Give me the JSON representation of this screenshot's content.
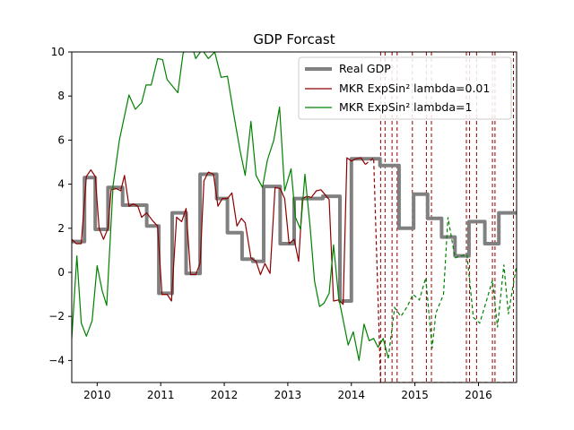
{
  "chart_data": {
    "type": "line",
    "title": "GDP Forcast",
    "xlim": [
      2009.6,
      2016.6
    ],
    "ylim": [
      -5,
      10
    ],
    "x_ticks": [
      2010,
      2011,
      2012,
      2013,
      2014,
      2015,
      2016
    ],
    "y_ticks": [
      -4,
      -2,
      0,
      2,
      4,
      6,
      8,
      10
    ],
    "grid": false,
    "legend_position": "top-right",
    "forecast_start_x": 2014.5,
    "vertical_markers": [
      2014.46,
      2014.53,
      2014.64,
      2014.72,
      2014.96,
      2015.18,
      2015.26,
      2015.81,
      2015.86,
      2015.97,
      2016.22,
      2016.26,
      2016.55,
      2016.6
    ],
    "colors": {
      "real": "#808080",
      "low": "#8b0000",
      "high": "#008000",
      "markers": "#8b0000"
    },
    "series": [
      {
        "name": "Real GDP",
        "color": "#808080",
        "points": [
          [
            2009.6,
            1.4
          ],
          [
            2009.8,
            1.4
          ],
          [
            2009.8,
            4.3
          ],
          [
            2009.97,
            4.3
          ],
          [
            2009.97,
            1.95
          ],
          [
            2010.17,
            1.95
          ],
          [
            2010.17,
            3.85
          ],
          [
            2010.4,
            3.85
          ],
          [
            2010.4,
            3.05
          ],
          [
            2010.78,
            3.05
          ],
          [
            2010.78,
            2.1
          ],
          [
            2010.97,
            2.1
          ],
          [
            2010.97,
            -0.95
          ],
          [
            2011.18,
            -0.95
          ],
          [
            2011.18,
            2.7
          ],
          [
            2011.4,
            2.7
          ],
          [
            2011.4,
            -0.05
          ],
          [
            2011.62,
            -0.05
          ],
          [
            2011.62,
            4.45
          ],
          [
            2011.88,
            4.45
          ],
          [
            2011.88,
            3.35
          ],
          [
            2012.05,
            3.35
          ],
          [
            2012.05,
            1.8
          ],
          [
            2012.28,
            1.8
          ],
          [
            2012.28,
            0.6
          ],
          [
            2012.45,
            0.6
          ],
          [
            2012.45,
            0.5
          ],
          [
            2012.62,
            0.5
          ],
          [
            2012.62,
            3.9
          ],
          [
            2012.88,
            3.9
          ],
          [
            2012.88,
            1.3
          ],
          [
            2013.1,
            1.3
          ],
          [
            2013.1,
            3.35
          ],
          [
            2013.55,
            3.35
          ],
          [
            2013.55,
            3.45
          ],
          [
            2013.82,
            3.45
          ],
          [
            2013.82,
            -1.3
          ],
          [
            2014.0,
            -1.3
          ],
          [
            2014.0,
            5.15
          ],
          [
            2014.45,
            5.15
          ],
          [
            2014.45,
            4.85
          ],
          [
            2014.75,
            4.85
          ],
          [
            2014.75,
            2.0
          ],
          [
            2014.98,
            2.0
          ],
          [
            2014.98,
            3.55
          ],
          [
            2015.2,
            3.55
          ],
          [
            2015.2,
            2.45
          ],
          [
            2015.42,
            2.45
          ],
          [
            2015.42,
            1.6
          ],
          [
            2015.63,
            1.6
          ],
          [
            2015.63,
            0.75
          ],
          [
            2015.85,
            0.75
          ],
          [
            2015.85,
            2.3
          ],
          [
            2016.1,
            2.3
          ],
          [
            2016.1,
            1.3
          ],
          [
            2016.32,
            1.3
          ],
          [
            2016.32,
            2.7
          ],
          [
            2016.6,
            2.7
          ]
        ]
      },
      {
        "name": "MKR ExpSin² lambda=0.01",
        "color": "#8b0000",
        "points": [
          [
            2009.6,
            1.5
          ],
          [
            2009.67,
            1.3
          ],
          [
            2009.75,
            1.3
          ],
          [
            2009.83,
            4.35
          ],
          [
            2009.9,
            4.65
          ],
          [
            2009.97,
            4.35
          ],
          [
            2010.03,
            2.0
          ],
          [
            2010.1,
            1.5
          ],
          [
            2010.17,
            2.0
          ],
          [
            2010.22,
            3.75
          ],
          [
            2010.3,
            3.8
          ],
          [
            2010.37,
            3.7
          ],
          [
            2010.43,
            4.4
          ],
          [
            2010.5,
            3.0
          ],
          [
            2010.57,
            3.1
          ],
          [
            2010.64,
            3.0
          ],
          [
            2010.7,
            2.5
          ],
          [
            2010.78,
            2.7
          ],
          [
            2010.87,
            2.35
          ],
          [
            2010.95,
            2.1
          ],
          [
            2011.02,
            -1.0
          ],
          [
            2011.1,
            -1.0
          ],
          [
            2011.17,
            -1.3
          ],
          [
            2011.25,
            2.5
          ],
          [
            2011.33,
            2.3
          ],
          [
            2011.4,
            2.9
          ],
          [
            2011.47,
            -0.1
          ],
          [
            2011.55,
            -0.1
          ],
          [
            2011.62,
            0.4
          ],
          [
            2011.68,
            4.15
          ],
          [
            2011.75,
            4.55
          ],
          [
            2011.83,
            4.45
          ],
          [
            2011.9,
            3.0
          ],
          [
            2011.97,
            3.35
          ],
          [
            2012.05,
            3.35
          ],
          [
            2012.12,
            3.6
          ],
          [
            2012.2,
            2.1
          ],
          [
            2012.27,
            2.45
          ],
          [
            2012.33,
            2.25
          ],
          [
            2012.42,
            0.65
          ],
          [
            2012.5,
            0.5
          ],
          [
            2012.57,
            -0.1
          ],
          [
            2012.64,
            0.4
          ],
          [
            2012.72,
            -0.05
          ],
          [
            2012.8,
            3.85
          ],
          [
            2012.88,
            3.8
          ],
          [
            2012.95,
            3.35
          ],
          [
            2013.02,
            1.3
          ],
          [
            2013.1,
            1.5
          ],
          [
            2013.17,
            0.5
          ],
          [
            2013.23,
            3.35
          ],
          [
            2013.3,
            3.45
          ],
          [
            2013.37,
            3.4
          ],
          [
            2013.45,
            3.7
          ],
          [
            2013.52,
            3.75
          ],
          [
            2013.58,
            3.55
          ],
          [
            2013.65,
            3.3
          ],
          [
            2013.72,
            -1.3
          ],
          [
            2013.8,
            -1.25
          ],
          [
            2013.87,
            -1.45
          ],
          [
            2013.93,
            5.2
          ],
          [
            2014.0,
            5.05
          ],
          [
            2014.07,
            5.15
          ],
          [
            2014.15,
            5.2
          ],
          [
            2014.22,
            4.9
          ]
        ]
      },
      {
        "name": "MKR ExpSin² lambda=1",
        "color": "#008000",
        "points": [
          [
            2009.6,
            -3.0
          ],
          [
            2009.68,
            0.75
          ],
          [
            2009.75,
            -2.3
          ],
          [
            2009.83,
            -2.9
          ],
          [
            2009.92,
            -2.2
          ],
          [
            2010.0,
            0.3
          ],
          [
            2010.08,
            -0.85
          ],
          [
            2010.15,
            -1.5
          ],
          [
            2010.25,
            3.95
          ],
          [
            2010.35,
            6.0
          ],
          [
            2010.5,
            8.05
          ],
          [
            2010.6,
            7.4
          ],
          [
            2010.7,
            7.7
          ],
          [
            2010.77,
            8.5
          ],
          [
            2010.85,
            8.5
          ],
          [
            2010.95,
            9.7
          ],
          [
            2011.03,
            9.65
          ],
          [
            2011.1,
            8.75
          ],
          [
            2011.27,
            8.15
          ],
          [
            2011.35,
            9.9
          ],
          [
            2011.45,
            10.7
          ],
          [
            2011.55,
            9.7
          ],
          [
            2011.65,
            10.1
          ],
          [
            2011.75,
            9.7
          ],
          [
            2011.85,
            10.0
          ],
          [
            2011.95,
            8.85
          ],
          [
            2012.05,
            8.9
          ],
          [
            2012.15,
            7.15
          ],
          [
            2012.25,
            5.5
          ],
          [
            2012.33,
            4.4
          ],
          [
            2012.42,
            6.85
          ],
          [
            2012.5,
            4.4
          ],
          [
            2012.6,
            3.85
          ],
          [
            2012.68,
            5.1
          ],
          [
            2012.78,
            6.0
          ],
          [
            2012.87,
            7.5
          ],
          [
            2012.95,
            3.7
          ],
          [
            2013.05,
            4.7
          ],
          [
            2013.12,
            2.5
          ],
          [
            2013.2,
            1.95
          ],
          [
            2013.27,
            4.45
          ],
          [
            2013.35,
            2.1
          ],
          [
            2013.42,
            -0.4
          ],
          [
            2013.5,
            -1.55
          ],
          [
            2013.57,
            -1.4
          ],
          [
            2013.65,
            -0.95
          ],
          [
            2013.72,
            1.25
          ],
          [
            2013.8,
            -1.15
          ],
          [
            2013.88,
            -2.3
          ],
          [
            2013.95,
            -3.3
          ],
          [
            2014.03,
            -2.7
          ],
          [
            2014.12,
            -4.0
          ],
          [
            2014.2,
            -2.35
          ],
          [
            2014.28,
            -3.1
          ],
          [
            2014.35,
            -3.0
          ],
          [
            2014.42,
            -3.4
          ],
          [
            2014.5,
            -3.0
          ],
          [
            2014.58,
            -3.9
          ]
        ]
      }
    ],
    "forecast_series": [
      {
        "color": "#8b0000",
        "points": [
          [
            2014.22,
            4.9
          ],
          [
            2014.35,
            5.2
          ],
          [
            2014.46,
            -5.0
          ],
          [
            2014.53,
            -5.0
          ],
          [
            2014.64,
            -5.0
          ],
          [
            2014.72,
            -5.0
          ],
          [
            2014.96,
            -5.0
          ],
          [
            2015.18,
            -5.0
          ],
          [
            2015.26,
            -5.0
          ],
          [
            2015.81,
            -5.0
          ],
          [
            2015.86,
            -5.0
          ],
          [
            2015.97,
            -5.0
          ],
          [
            2016.22,
            -5.0
          ],
          [
            2016.26,
            -5.0
          ],
          [
            2016.55,
            -5.0
          ]
        ]
      },
      {
        "color": "#008000",
        "points": [
          [
            2014.58,
            -3.9
          ],
          [
            2014.68,
            -1.6
          ],
          [
            2014.78,
            -2.0
          ],
          [
            2014.88,
            -1.55
          ],
          [
            2014.97,
            -1.0
          ],
          [
            2015.07,
            -1.25
          ],
          [
            2015.17,
            -0.25
          ],
          [
            2015.27,
            -3.45
          ],
          [
            2015.33,
            -1.85
          ],
          [
            2015.45,
            -1.0
          ],
          [
            2015.52,
            2.5
          ],
          [
            2015.63,
            0.65
          ],
          [
            2015.72,
            0.75
          ],
          [
            2015.82,
            0.8
          ],
          [
            2015.92,
            -2.05
          ],
          [
            2016.02,
            -2.3
          ],
          [
            2016.12,
            -1.35
          ],
          [
            2016.22,
            -0.35
          ],
          [
            2016.3,
            -2.5
          ],
          [
            2016.4,
            0.35
          ],
          [
            2016.47,
            -1.9
          ],
          [
            2016.6,
            0.35
          ]
        ]
      }
    ]
  }
}
